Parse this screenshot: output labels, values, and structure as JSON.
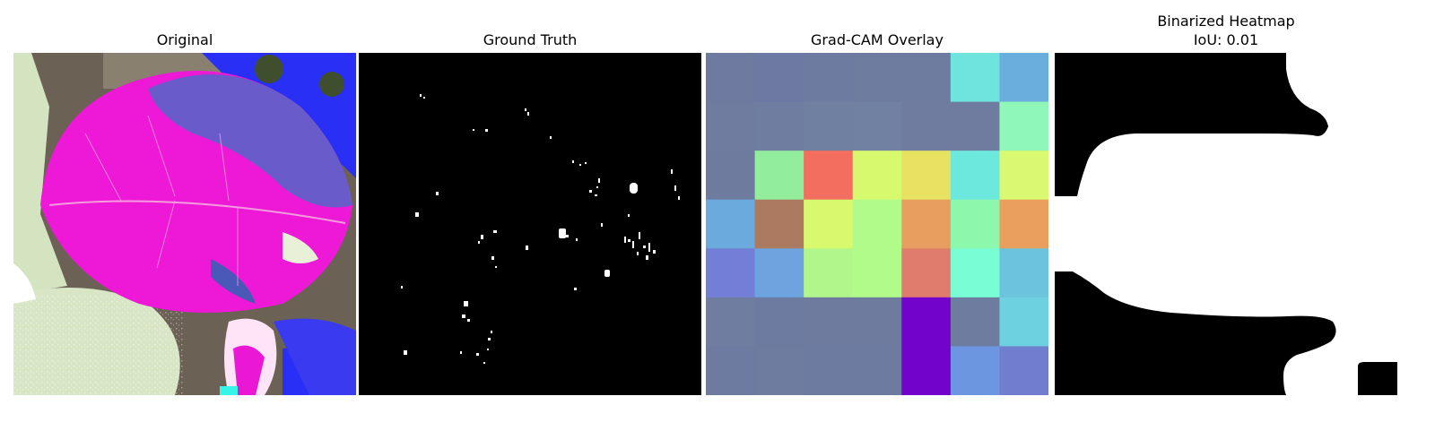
{
  "panels": {
    "original": {
      "title": "Original"
    },
    "ground_truth": {
      "title": "Ground Truth"
    },
    "gradcam": {
      "title": "Grad-CAM Overlay",
      "cells": [
        [
          "#6e7aa0",
          "#6d78a3",
          "#6d7ba0",
          "#6e7c9f",
          "#6e7c9f",
          "#6fe3de",
          "#6aaedd"
        ],
        [
          "#6f7ca0",
          "#6f7da0",
          "#6f80a0",
          "#7081a1",
          "#6f7ca0",
          "#6f7ca0",
          "#8ff7b8"
        ],
        [
          "#6e7b9f",
          "#92ed9c",
          "#f26e5e",
          "#d6f96e",
          "#e7e262",
          "#6ce8dd",
          "#d9f972"
        ],
        [
          "#6aaadc",
          "#ac7a60",
          "#d8f86e",
          "#b0fb8a",
          "#e89e5f",
          "#8df7ac",
          "#ea9f5e"
        ],
        [
          "#737ed6",
          "#6da3df",
          "#b0f68a",
          "#b0fb8a",
          "#e07c6d",
          "#78fdd4",
          "#6cc3de"
        ],
        [
          "#6f7ea0",
          "#6e7ba0",
          "#6e7b9f",
          "#6e7b9f",
          "#7203cb",
          "#6e7ca0",
          "#6dd1df"
        ],
        [
          "#6e7ba0",
          "#6e7ca0",
          "#6e7ba0",
          "#6e7ba0",
          "#7203cb",
          "#6d96e0",
          "#6f7ece"
        ]
      ]
    },
    "binarized": {
      "title": "Binarized Heatmap\nIoU: 0.01"
    }
  }
}
